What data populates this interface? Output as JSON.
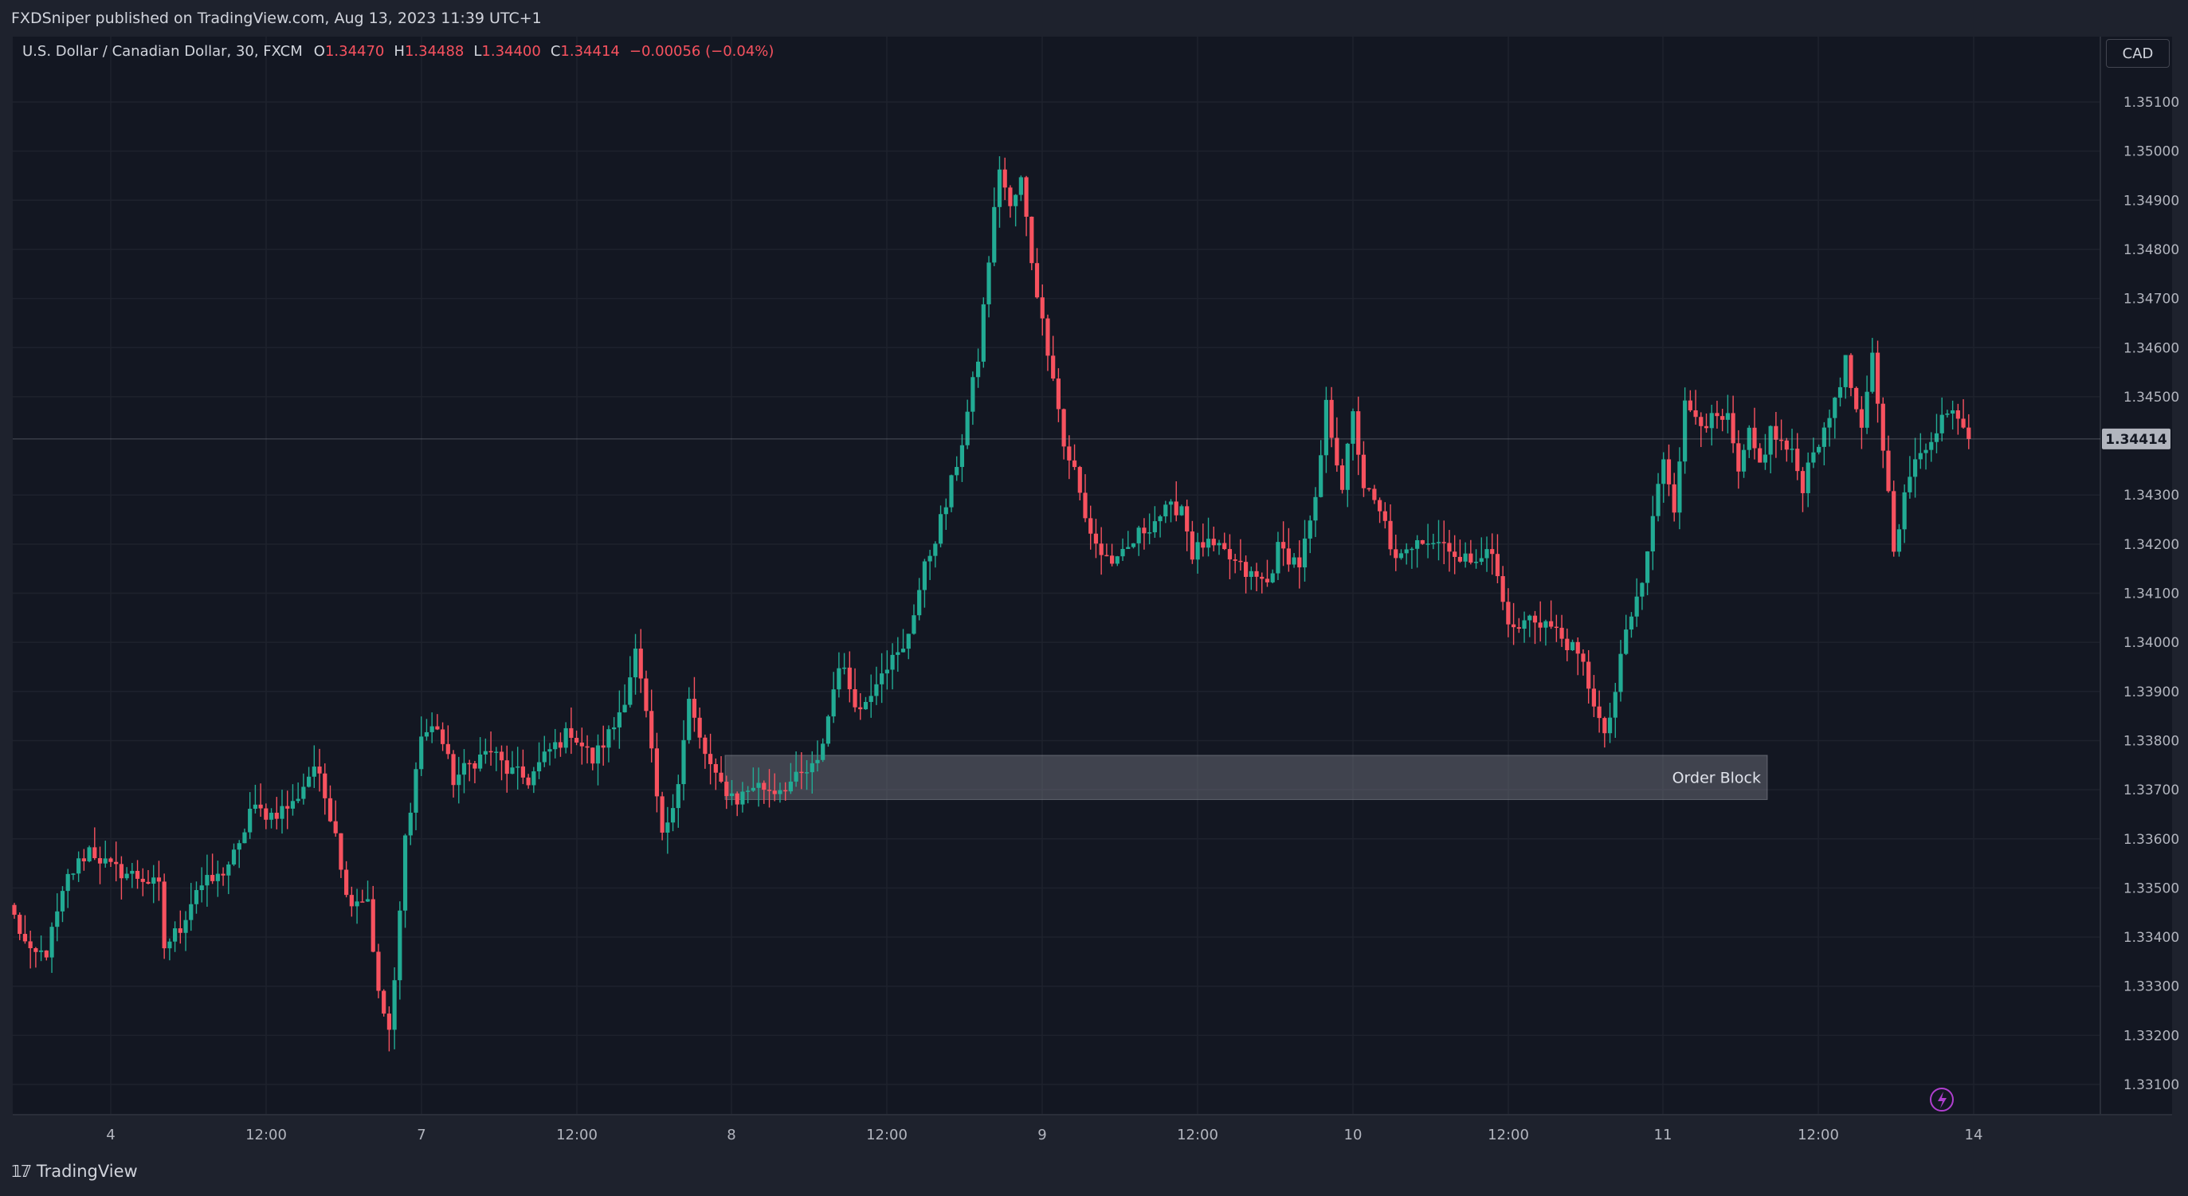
{
  "header": {
    "published": "FXDSniper published on TradingView.com, Aug 13, 2023 11:39 UTC+1"
  },
  "legend": {
    "symbol": "U.S. Dollar / Canadian Dollar, 30, FXCM",
    "o_label": "O",
    "o_value": "1.34470",
    "h_label": "H",
    "h_value": "1.34488",
    "l_label": "L",
    "l_value": "1.34400",
    "c_label": "C",
    "c_value": "1.34414",
    "change": "−0.00056 (−0.04%)"
  },
  "currency_button": "CAD",
  "footer": {
    "brand": "TradingView"
  },
  "colors": {
    "up": "#22ab94",
    "down": "#f7525f",
    "background": "#131722"
  },
  "chart_data": {
    "type": "candlestick",
    "symbol": "USDCAD",
    "timeframe": "30",
    "y_ticks": [
      "1.35100",
      "1.35000",
      "1.34900",
      "1.34800",
      "1.34700",
      "1.34600",
      "1.34500",
      "1.34300",
      "1.34200",
      "1.34100",
      "1.34000",
      "1.33900",
      "1.33800",
      "1.33700",
      "1.33600",
      "1.33500",
      "1.33400",
      "1.33300",
      "1.33200",
      "1.33100"
    ],
    "ylim": [
      1.3305,
      1.3518
    ],
    "x_ticks": [
      "4",
      "12:00",
      "7",
      "12:00",
      "8",
      "12:00",
      "9",
      "12:00",
      "10",
      "12:00",
      "11",
      "12:00",
      "14"
    ],
    "last_price_label": "1.34414",
    "last_price": 1.34414,
    "annotation": {
      "label": "Order Block",
      "low": 1.3368,
      "high": 1.3377
    },
    "path_knots": [
      [
        0,
        1.3344
      ],
      [
        3,
        1.3336
      ],
      [
        6,
        1.3337
      ],
      [
        10,
        1.3352
      ],
      [
        14,
        1.3358
      ],
      [
        18,
        1.3354
      ],
      [
        24,
        1.3352
      ],
      [
        27,
        1.335
      ],
      [
        28,
        1.3338
      ],
      [
        31,
        1.3342
      ],
      [
        34,
        1.335
      ],
      [
        38,
        1.3352
      ],
      [
        42,
        1.3358
      ],
      [
        44,
        1.3366
      ],
      [
        48,
        1.3365
      ],
      [
        52,
        1.3367
      ],
      [
        56,
        1.3375
      ],
      [
        60,
        1.3362
      ],
      [
        62,
        1.3348
      ],
      [
        66,
        1.3348
      ],
      [
        68,
        1.3328
      ],
      [
        70,
        1.3321
      ],
      [
        71,
        1.333
      ],
      [
        73,
        1.336
      ],
      [
        76,
        1.3381
      ],
      [
        79,
        1.3383
      ],
      [
        82,
        1.3372
      ],
      [
        86,
        1.3376
      ],
      [
        89,
        1.3378
      ],
      [
        92,
        1.3374
      ],
      [
        96,
        1.3372
      ],
      [
        100,
        1.3378
      ],
      [
        104,
        1.3382
      ],
      [
        108,
        1.3376
      ],
      [
        112,
        1.3383
      ],
      [
        114,
        1.3389
      ],
      [
        116,
        1.3398
      ],
      [
        118,
        1.3385
      ],
      [
        121,
        1.336
      ],
      [
        124,
        1.3372
      ],
      [
        126,
        1.3388
      ],
      [
        128,
        1.338
      ],
      [
        131,
        1.3372
      ],
      [
        135,
        1.3368
      ],
      [
        138,
        1.3371
      ],
      [
        142,
        1.337
      ],
      [
        146,
        1.3372
      ],
      [
        150,
        1.3375
      ],
      [
        152,
        1.3385
      ],
      [
        154,
        1.3396
      ],
      [
        158,
        1.3386
      ],
      [
        162,
        1.3395
      ],
      [
        166,
        1.3398
      ],
      [
        170,
        1.3415
      ],
      [
        174,
        1.3428
      ],
      [
        177,
        1.3441
      ],
      [
        180,
        1.3458
      ],
      [
        182,
        1.3478
      ],
      [
        184,
        1.3497
      ],
      [
        186,
        1.3488
      ],
      [
        188,
        1.3494
      ],
      [
        190,
        1.3478
      ],
      [
        192,
        1.3465
      ],
      [
        194,
        1.3455
      ],
      [
        196,
        1.344
      ],
      [
        198,
        1.3435
      ],
      [
        200,
        1.3425
      ],
      [
        203,
        1.3418
      ],
      [
        206,
        1.3416
      ],
      [
        210,
        1.3422
      ],
      [
        214,
        1.3426
      ],
      [
        218,
        1.3428
      ],
      [
        220,
        1.3418
      ],
      [
        222,
        1.342
      ],
      [
        226,
        1.3418
      ],
      [
        230,
        1.3414
      ],
      [
        234,
        1.3412
      ],
      [
        236,
        1.3419
      ],
      [
        240,
        1.3416
      ],
      [
        243,
        1.3428
      ],
      [
        245,
        1.3448
      ],
      [
        248,
        1.3432
      ],
      [
        250,
        1.3446
      ],
      [
        252,
        1.3432
      ],
      [
        254,
        1.3428
      ],
      [
        256,
        1.3424
      ],
      [
        258,
        1.3416
      ],
      [
        260,
        1.3418
      ],
      [
        262,
        1.3422
      ],
      [
        264,
        1.3421
      ],
      [
        268,
        1.342
      ],
      [
        270,
        1.3416
      ],
      [
        273,
        1.3418
      ],
      [
        276,
        1.3418
      ],
      [
        278,
        1.3408
      ],
      [
        280,
        1.3402
      ],
      [
        283,
        1.3405
      ],
      [
        286,
        1.3404
      ],
      [
        290,
        1.34
      ],
      [
        293,
        1.3395
      ],
      [
        295,
        1.3388
      ],
      [
        297,
        1.338
      ],
      [
        299,
        1.339
      ],
      [
        301,
        1.3402
      ],
      [
        304,
        1.3412
      ],
      [
        306,
        1.3425
      ],
      [
        308,
        1.3438
      ],
      [
        310,
        1.3428
      ],
      [
        312,
        1.3448
      ],
      [
        316,
        1.3445
      ],
      [
        320,
        1.3445
      ],
      [
        322,
        1.3434
      ],
      [
        324,
        1.3442
      ],
      [
        326,
        1.3436
      ],
      [
        328,
        1.3443
      ],
      [
        332,
        1.3438
      ],
      [
        334,
        1.3432
      ],
      [
        336,
        1.344
      ],
      [
        338,
        1.3442
      ],
      [
        340,
        1.345
      ],
      [
        342,
        1.3457
      ],
      [
        345,
        1.3442
      ],
      [
        347,
        1.3458
      ],
      [
        349,
        1.344
      ],
      [
        351,
        1.342
      ],
      [
        354,
        1.3434
      ],
      [
        357,
        1.344
      ],
      [
        360,
        1.3446
      ],
      [
        363,
        1.3447
      ],
      [
        365,
        1.3442
      ]
    ]
  }
}
